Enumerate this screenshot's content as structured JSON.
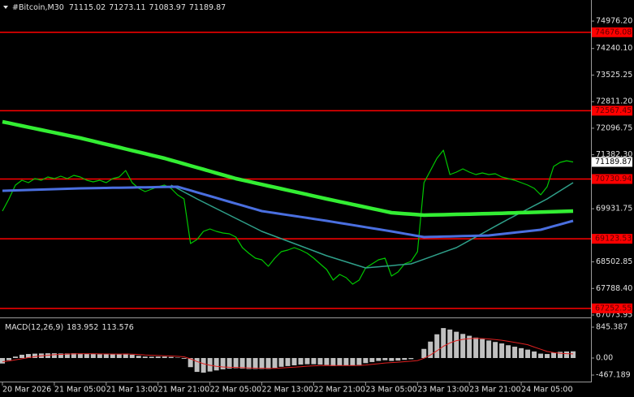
{
  "chart_data": [
    {
      "type": "line",
      "title": "#Bitcoin,M30",
      "ohlc": [
        71115.02,
        71273.11,
        71083.97,
        71189.87
      ],
      "categories": [
        "20 Mar 2026",
        null,
        null,
        null,
        null,
        null,
        null,
        null,
        "21 Mar 05:00",
        null,
        null,
        null,
        null,
        null,
        null,
        null,
        "21 Mar 13:00",
        null,
        null,
        null,
        null,
        null,
        null,
        null,
        "21 Mar 21:00",
        null,
        null,
        null,
        null,
        null,
        null,
        null,
        "22 Mar 05:00",
        null,
        null,
        null,
        null,
        null,
        null,
        null,
        "22 Mar 13:00",
        null,
        null,
        null,
        null,
        null,
        null,
        null,
        "22 Mar 21:00",
        null,
        null,
        null,
        null,
        null,
        null,
        null,
        "23 Mar 05:00",
        null,
        null,
        null,
        null,
        null,
        null,
        null,
        "23 Mar 13:00",
        null,
        null,
        null,
        null,
        null,
        null,
        null,
        "23 Mar 21:00",
        null,
        null,
        null,
        null,
        null,
        null,
        null,
        "24 Mar 05:00",
        null,
        null,
        null,
        null,
        null,
        null,
        null,
        null
      ],
      "series": [
        {
          "color": "#00c800",
          "width": 1.2,
          "values": [
            69868,
            70196,
            70567,
            70698,
            70632,
            70741,
            70698,
            70785,
            70741,
            70807,
            70741,
            70829,
            70785,
            70698,
            70654,
            70698,
            70632,
            70741,
            70785,
            70960,
            70632,
            70479,
            70392,
            70458,
            70523,
            70567,
            70479,
            70305,
            70196,
            68995,
            69104,
            69322,
            69388,
            69322,
            69279,
            69257,
            69170,
            68886,
            68733,
            68602,
            68558,
            68384,
            68602,
            68777,
            68820,
            68886,
            68820,
            68733,
            68602,
            68449,
            68296,
            68013,
            68165,
            68078,
            67904,
            68013,
            68340,
            68449,
            68558,
            68602,
            68122,
            68231,
            68449,
            68515,
            68777,
            70632,
            70960,
            71287,
            71506,
            70851,
            70916,
            71003,
            70916,
            70851,
            70894,
            70851,
            70873,
            70785,
            70741,
            70698,
            70632,
            70567,
            70479,
            70305,
            70523,
            71069,
            71178,
            71222,
            71189.87
          ]
        },
        {
          "color": "#2fa08a",
          "width": 1.5,
          "values": [
            null,
            null,
            null,
            null,
            null,
            null,
            null,
            null,
            null,
            null,
            null,
            null,
            null,
            null,
            null,
            null,
            null,
            null,
            null,
            null,
            null,
            null,
            null,
            null,
            null,
            null,
            70567,
            70474,
            70382,
            70289,
            70196,
            70109,
            70021,
            69934,
            69846,
            69759,
            69672,
            69584,
            69497,
            69409,
            69322,
            69257,
            69191,
            69126,
            69060,
            68995,
            68929,
            68864,
            68798,
            68733,
            68667,
            68613,
            68558,
            68504,
            68449,
            68395,
            68340,
            68356,
            68371,
            68387,
            68402,
            68418,
            68434,
            68449,
            68511,
            68574,
            68636,
            68699,
            68761,
            68824,
            68886,
            68982,
            69077,
            69173,
            69268,
            69364,
            69459,
            69555,
            69650,
            69741,
            69832,
            69923,
            70014,
            70105,
            70196,
            70305,
            70414,
            70523,
            70632
          ]
        },
        {
          "color": "#4a6fe0",
          "width": 3,
          "values": [
            70414,
            70419,
            70425,
            70430,
            70436,
            70441,
            70446,
            70452,
            70457,
            70463,
            70468,
            70474,
            70479,
            70482,
            70485,
            70488,
            70491,
            70494,
            70497,
            70500,
            70502,
            70505,
            70508,
            70511,
            70514,
            70517,
            70520,
            70523,
            70473,
            70422,
            70372,
            70322,
            70271,
            70221,
            70170,
            70120,
            70070,
            70019,
            69969,
            69918,
            69868,
            69842,
            69816,
            69789,
            69763,
            69737,
            69711,
            69685,
            69658,
            69632,
            69606,
            69578,
            69549,
            69521,
            69492,
            69464,
            69436,
            69407,
            69379,
            69350,
            69322,
            69292,
            69261,
            69231,
            69200,
            69170,
            69174,
            69179,
            69183,
            69187,
            69192,
            69196,
            69200,
            69204,
            69209,
            69213,
            69232,
            69251,
            69270,
            69289,
            69309,
            69328,
            69347,
            69366,
            69414,
            69462,
            69510,
            69558,
            69606
          ]
        },
        {
          "color": "#33ee33",
          "width": 4.5,
          "values": [
            72270,
            72234,
            72197,
            72161,
            72124,
            72088,
            72052,
            72015,
            71979,
            71942,
            71906,
            71870,
            71833,
            71791,
            71749,
            71707,
            71665,
            71623,
            71581,
            71539,
            71497,
            71455,
            71413,
            71371,
            71329,
            71287,
            71237,
            71188,
            71138,
            71089,
            71039,
            70990,
            70940,
            70890,
            70841,
            70791,
            70741,
            70702,
            70663,
            70624,
            70585,
            70546,
            70507,
            70469,
            70430,
            70391,
            70352,
            70313,
            70274,
            70235,
            70196,
            70159,
            70122,
            70085,
            70048,
            70011,
            69973,
            69936,
            69899,
            69862,
            69825,
            69812,
            69799,
            69785,
            69772,
            69759,
            69763,
            69767,
            69771,
            69775,
            69780,
            69784,
            69788,
            69792,
            69796,
            69800,
            69805,
            69810,
            69816,
            69821,
            69826,
            69831,
            69836,
            69842,
            69847,
            69852,
            69857,
            69862,
            69868
          ]
        }
      ],
      "levels": [
        74676.08,
        72567.45,
        70730.94,
        69123.53,
        67252.55
      ],
      "level_color": "#ff0000",
      "ylim": [
        67073.95,
        75544
      ],
      "yticks": [
        {
          "value": 74976.2,
          "label": "74976.20"
        },
        {
          "value": 74240.1,
          "label": "74240.10"
        },
        73525.25,
        {
          "value": 72811.2,
          "label": "72811.20"
        },
        72096.75,
        {
          "value": 71382.3,
          "label": "71382.30"
        },
        69931.75,
        68502.85,
        {
          "value": 67788.4,
          "label": "67788.40"
        },
        67073.95
      ],
      "grid": false
    },
    {
      "type": "bar",
      "title": "MACD(12,26,9)",
      "series": [
        {
          "color": "#c0c0c0",
          "values": [
            -150,
            -60,
            40,
            90,
            110,
            120,
            125,
            130,
            130,
            125,
            125,
            130,
            125,
            115,
            110,
            105,
            100,
            100,
            105,
            120,
            90,
            60,
            40,
            35,
            40,
            40,
            30,
            10,
            -20,
            -250,
            -380,
            -400,
            -370,
            -340,
            -310,
            -290,
            -280,
            -290,
            -300,
            -300,
            -300,
            -300,
            -270,
            -240,
            -220,
            -200,
            -180,
            -170,
            -170,
            -180,
            -190,
            -220,
            -210,
            -200,
            -210,
            -190,
            -140,
            -110,
            -80,
            -60,
            -80,
            -70,
            -50,
            -30,
            0,
            250,
            450,
            650,
            820,
            780,
            720,
            660,
            610,
            560,
            520,
            480,
            440,
            400,
            350,
            310,
            270,
            230,
            180,
            120,
            110,
            150,
            170,
            180,
            183.952
          ]
        },
        {
          "type": "line",
          "color": "#e02020",
          "width": 1,
          "values": [
            -100,
            -80,
            -50,
            -20,
            10,
            40,
            60,
            75,
            90,
            100,
            108,
            113,
            116,
            117,
            116,
            114,
            111,
            109,
            108,
            110,
            106,
            97,
            85,
            75,
            68,
            62,
            56,
            47,
            34,
            -23,
            -95,
            -156,
            -199,
            -227,
            -244,
            -253,
            -258,
            -264,
            -271,
            -277,
            -281,
            -285,
            -282,
            -274,
            -263,
            -251,
            -237,
            -223,
            -213,
            -206,
            -203,
            -206,
            -207,
            -206,
            -207,
            -203,
            -191,
            -174,
            -155,
            -136,
            -125,
            -114,
            -101,
            -87,
            -70,
            -6,
            85,
            198,
            322,
            414,
            475,
            512,
            532,
            537,
            534,
            523,
            507,
            486,
            459,
            429,
            397,
            364,
            300,
            240,
            180,
            150,
            130,
            120,
            113.576
          ]
        }
      ],
      "ylim": [
        -645,
        1045
      ],
      "yticks": [
        845.387,
        {
          "value": 0,
          "label": "0.00"
        },
        -467.189
      ],
      "grid": false
    }
  ]
}
